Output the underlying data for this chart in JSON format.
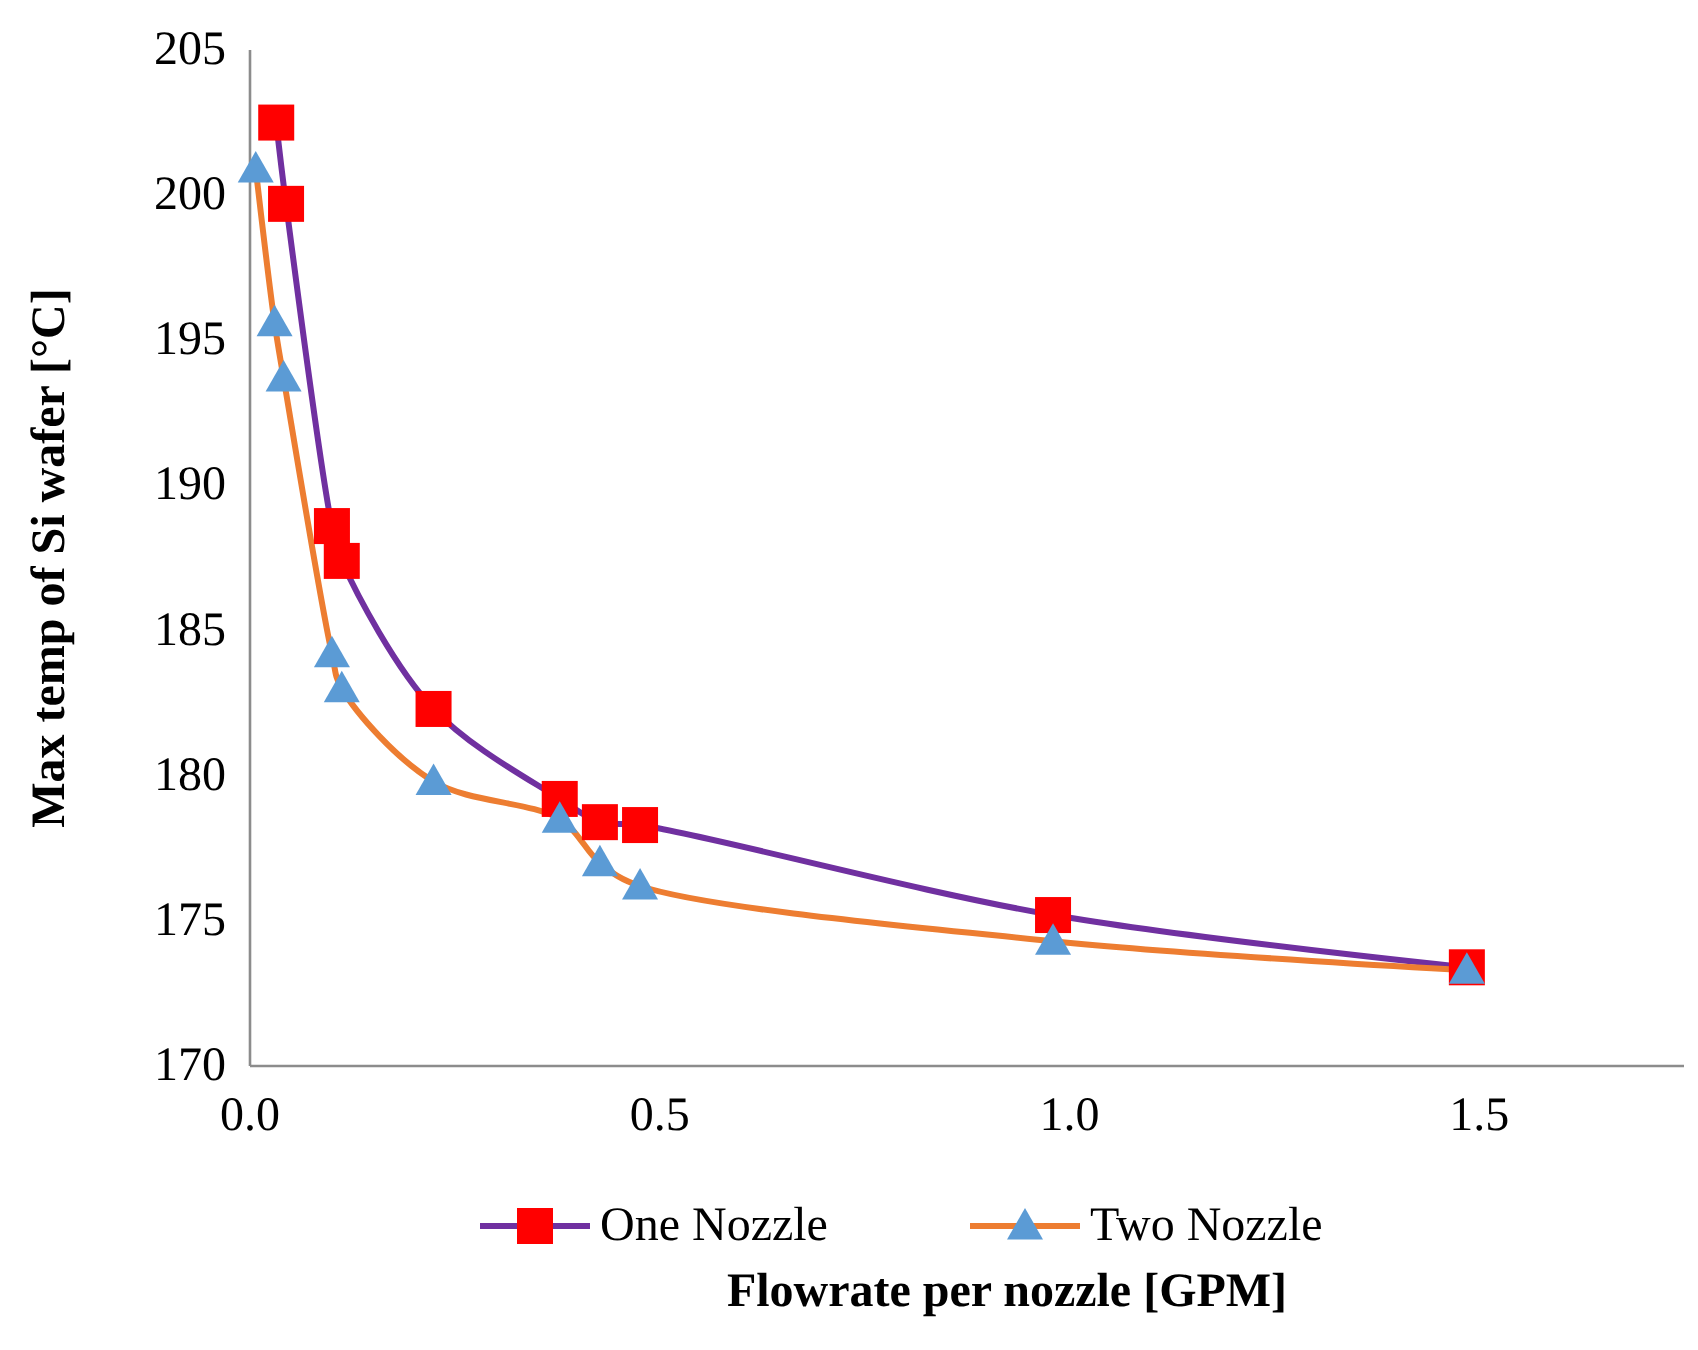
{
  "chart_data": {
    "type": "line",
    "xlabel": "Flowrate per nozzle [GPM]",
    "ylabel": "Max temp of Si wafer [°C]",
    "xlim": [
      0,
      1.75
    ],
    "xticks": [
      {
        "value": 0,
        "label": "0.0"
      },
      0.5,
      {
        "value": 1,
        "label": "1.0"
      },
      1.5
    ],
    "ylim": [
      170,
      205
    ],
    "yticks": [
      170,
      175,
      180,
      185,
      190,
      195,
      200,
      205
    ],
    "grid": false,
    "legend": "bottom",
    "line_style": "solid",
    "series": [
      {
        "name": "One Nozzle",
        "color": "#7030a0",
        "marker": "square",
        "colors": [
          "#ff0000",
          "#ff0000",
          "#ff0000",
          "#ff0000",
          "#ff0000",
          "#ff0000",
          "#ff0000",
          "#ff0000",
          "#ff0000",
          "#ff0000"
        ],
        "x": [
          0.032,
          0.044,
          0.1,
          0.112,
          0.224,
          0.378,
          0.427,
          0.476,
          0.98,
          1.485
        ],
        "values": [
          202.5,
          199.7,
          188.6,
          187.4,
          182.3,
          179.2,
          178.4,
          178.3,
          175.2,
          173.4
        ]
      },
      {
        "name": "Two Nozzle",
        "color": "#ed7d31",
        "marker": "triangle",
        "colors": [
          "#5b9bd5",
          "#5b9bd5",
          "#5b9bd5",
          "#5b9bd5",
          "#5b9bd5",
          "#5b9bd5",
          "#5b9bd5",
          "#5b9bd5",
          "#5b9bd5",
          "#5b9bd5",
          "#5b9bd5"
        ],
        "x": [
          0.007,
          0.03,
          0.041,
          0.1,
          0.112,
          0.224,
          0.378,
          0.427,
          0.476,
          0.98,
          1.485
        ],
        "values": [
          200.9,
          195.6,
          193.7,
          184.2,
          183.0,
          179.8,
          178.5,
          177.0,
          176.2,
          174.3,
          173.3
        ]
      }
    ]
  }
}
